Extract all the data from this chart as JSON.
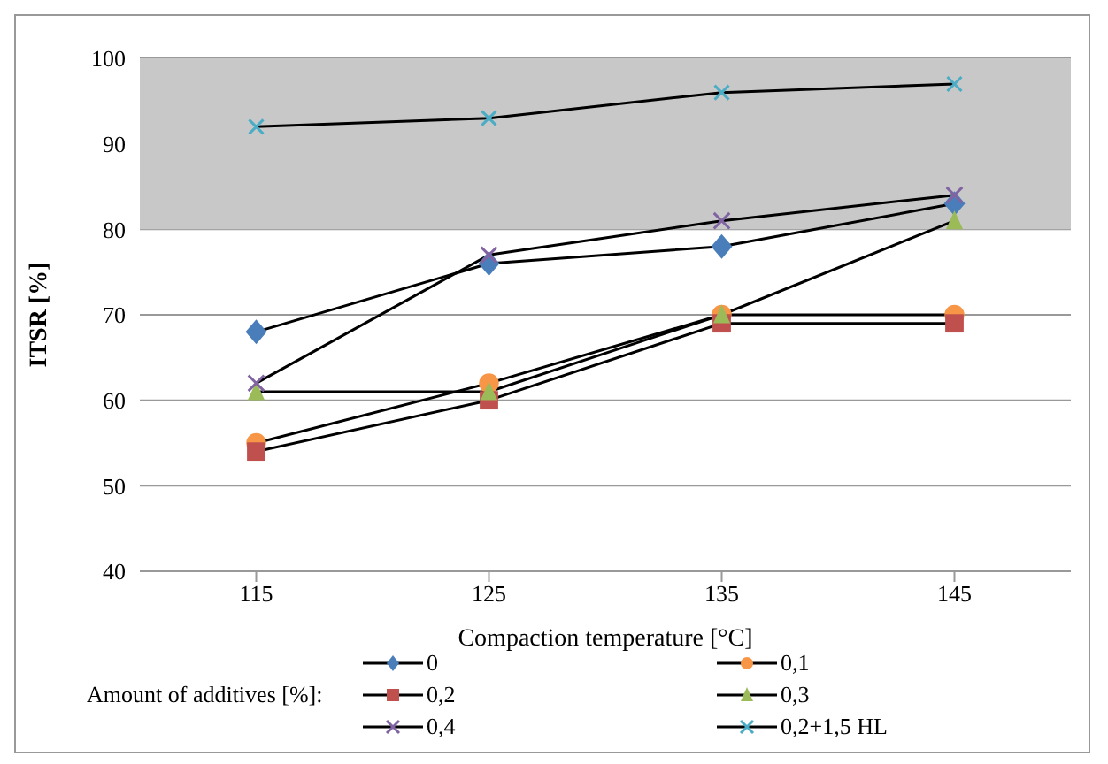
{
  "chart_data": {
    "type": "line",
    "xlabel": "Compaction temperature [°C]",
    "ylabel": "ITSR [%]",
    "legend_title": "Amount of additives [%]:",
    "categories": [
      "115",
      "125",
      "135",
      "145"
    ],
    "series": [
      {
        "name": "0",
        "color": "#4a7ebb",
        "marker": "diamond",
        "values": [
          68,
          76,
          78,
          83
        ]
      },
      {
        "name": "0,1",
        "color": "#f79646",
        "marker": "circle",
        "values": [
          55,
          62,
          70,
          70
        ]
      },
      {
        "name": "0,2",
        "color": "#c0504d",
        "marker": "square",
        "values": [
          54,
          60,
          69,
          69
        ]
      },
      {
        "name": "0,3",
        "color": "#9bbb59",
        "marker": "triangle",
        "values": [
          61,
          61,
          70,
          81
        ]
      },
      {
        "name": "0,4",
        "color": "#8064a2",
        "marker": "cross",
        "values": [
          62,
          77,
          81,
          84
        ]
      },
      {
        "name": "0,2+1,5 HL",
        "color": "#4bacc6",
        "marker": "cross",
        "values": [
          92,
          93,
          96,
          97
        ]
      }
    ],
    "ylim": [
      40,
      100
    ],
    "yticks": [
      40,
      50,
      60,
      70,
      80,
      90,
      100
    ],
    "grid": "y",
    "legend": "bottom",
    "bands": [
      {
        "axis": "y",
        "from": 80,
        "to": 100,
        "color": "#c8c8c8"
      }
    ]
  }
}
